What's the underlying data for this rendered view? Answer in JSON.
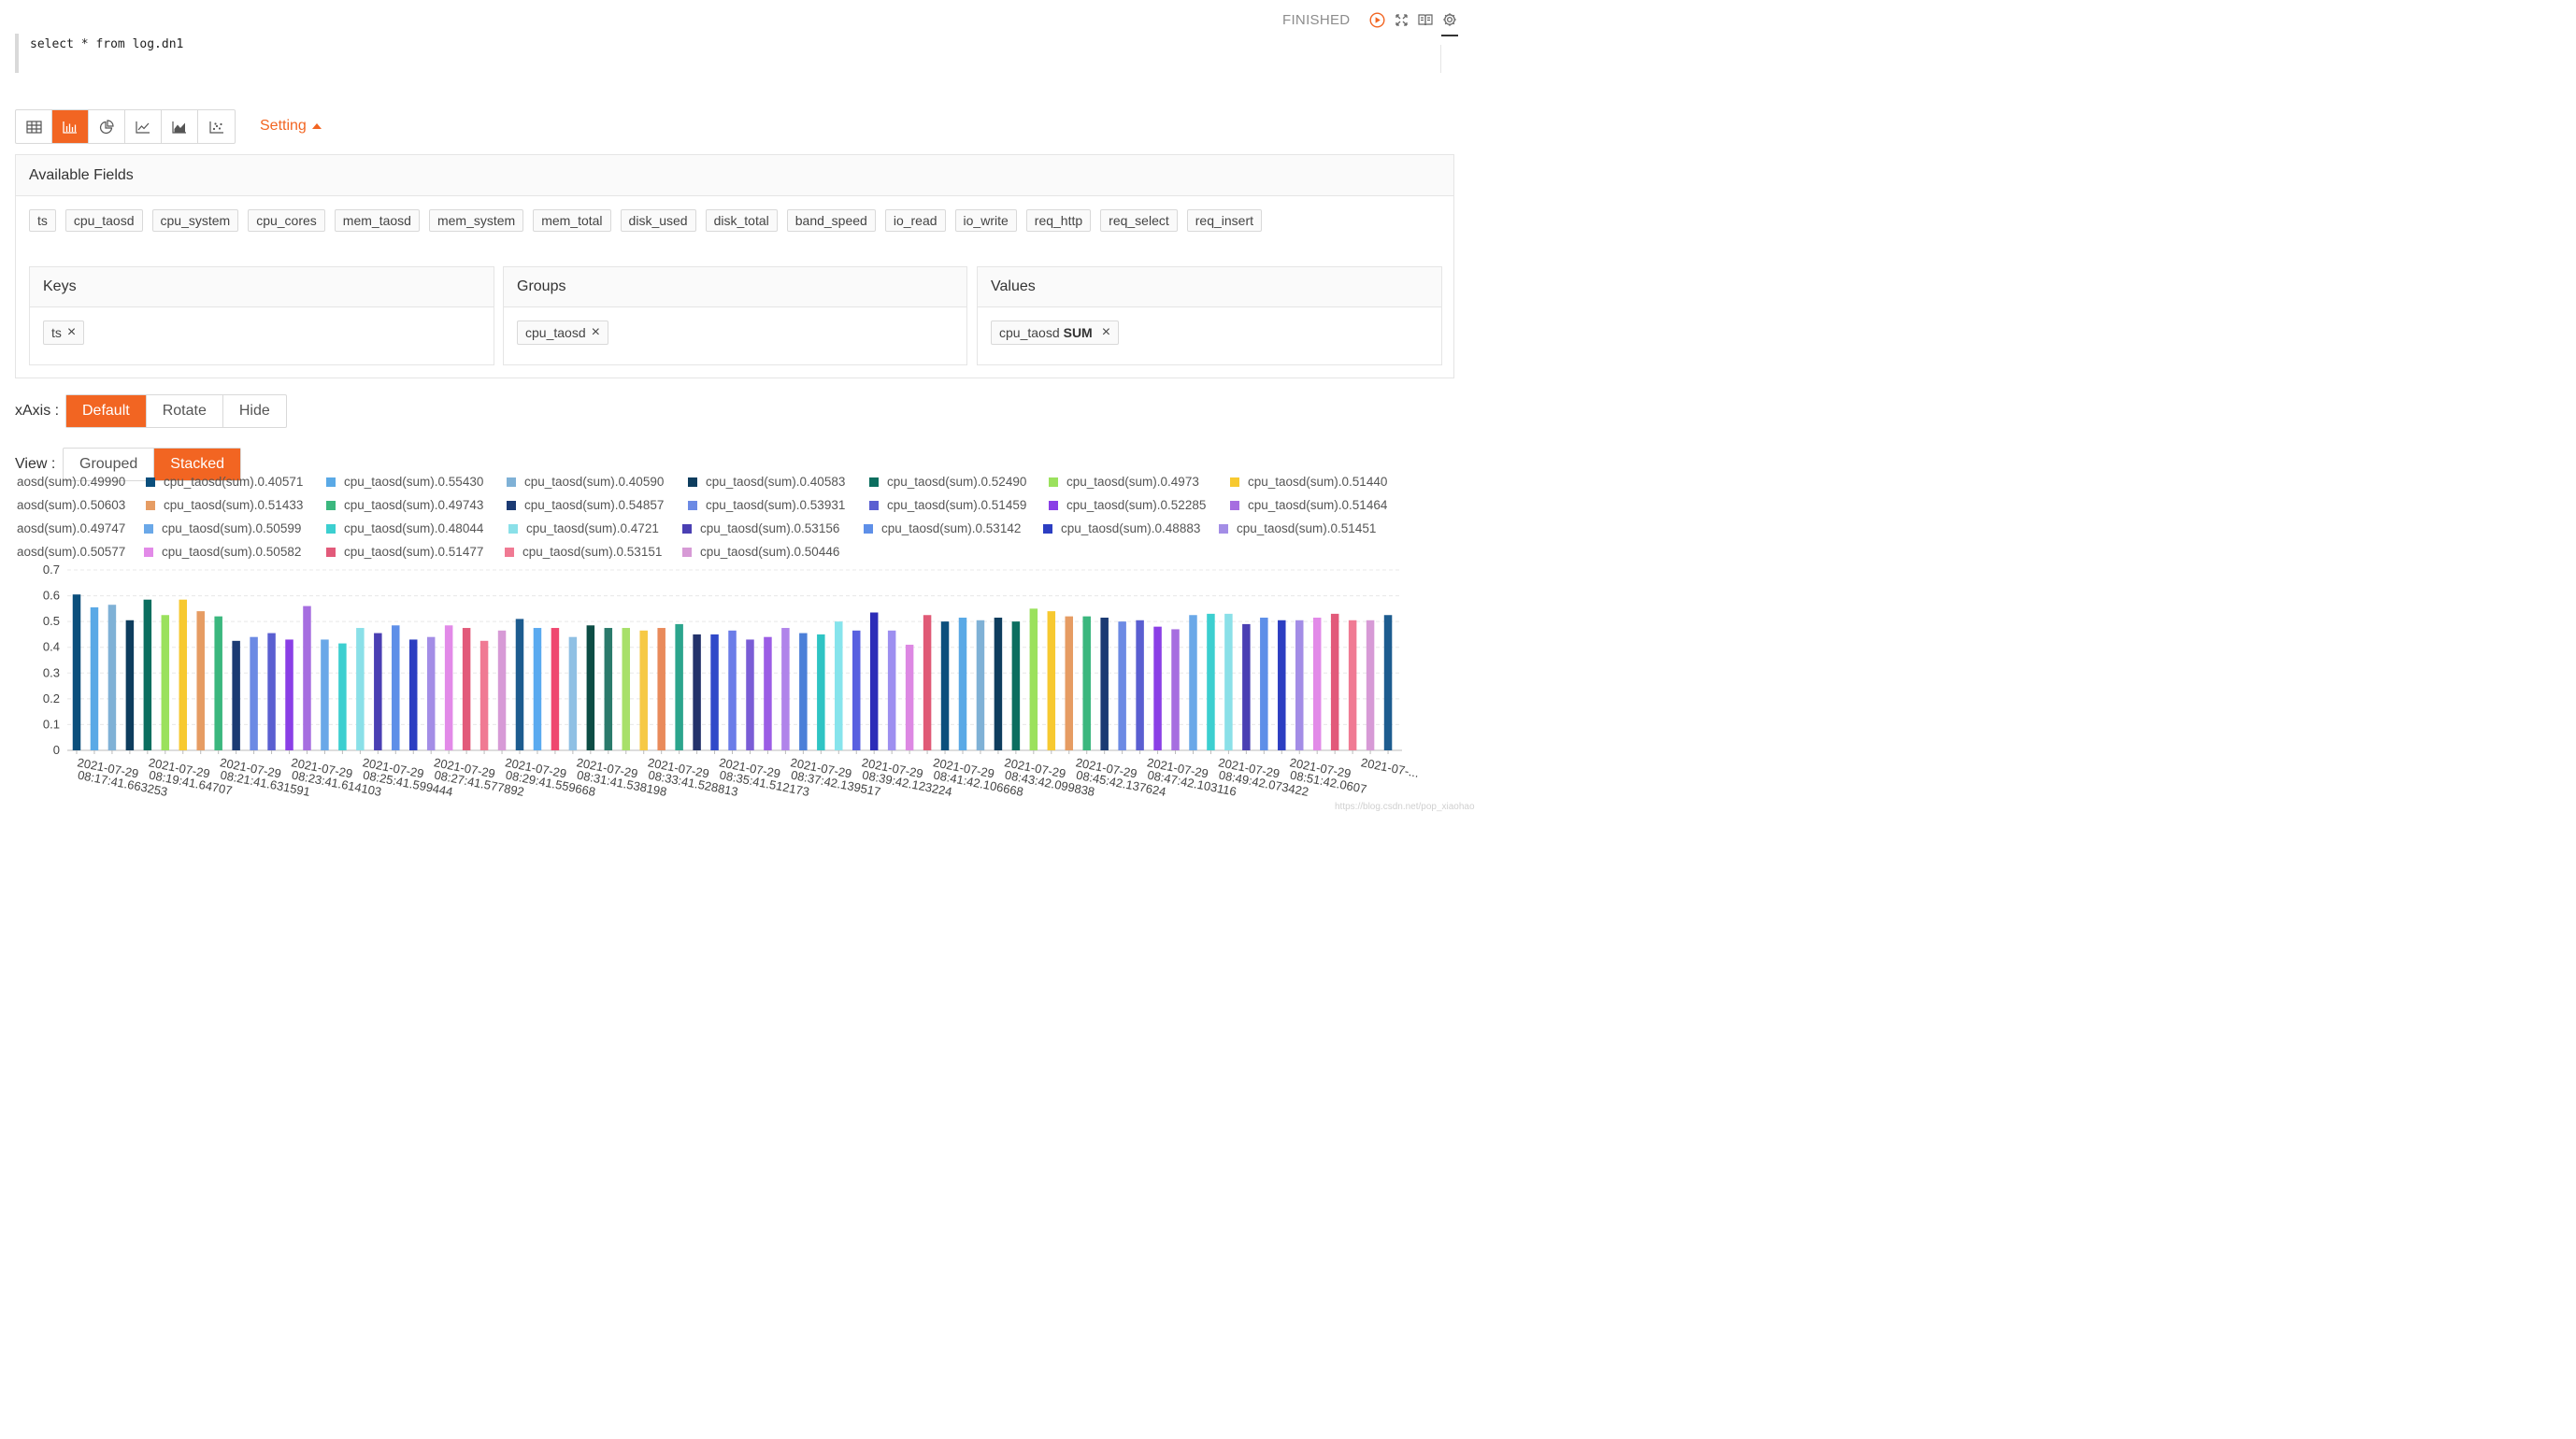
{
  "status": "FINISHED",
  "icons": {
    "run": "play-circle-icon",
    "expand": "expand-icon",
    "book": "book-icon",
    "settings": "gear-icon"
  },
  "editor": {
    "query": "select * from log.dn1"
  },
  "toolbar": {
    "buttons": [
      {
        "name": "table-icon",
        "active": false
      },
      {
        "name": "bar-chart-icon",
        "active": true
      },
      {
        "name": "pie-chart-icon",
        "active": false
      },
      {
        "name": "line-chart-icon",
        "active": false
      },
      {
        "name": "area-chart-icon",
        "active": false
      },
      {
        "name": "scatter-chart-icon",
        "active": false
      }
    ],
    "setting_label": "Setting"
  },
  "panel": {
    "title": "Available Fields",
    "fields": [
      "ts",
      "cpu_taosd",
      "cpu_system",
      "cpu_cores",
      "mem_taosd",
      "mem_system",
      "mem_total",
      "disk_used",
      "disk_total",
      "band_speed",
      "io_read",
      "io_write",
      "req_http",
      "req_select",
      "req_insert"
    ],
    "keys": {
      "title": "Keys",
      "item": "ts"
    },
    "groups": {
      "title": "Groups",
      "item": "cpu_taosd"
    },
    "values": {
      "title": "Values",
      "item": "cpu_taosd",
      "agg": "SUM"
    }
  },
  "xaxis": {
    "label": "xAxis :",
    "options": [
      "Default",
      "Rotate",
      "Hide"
    ],
    "selected": "Default"
  },
  "view": {
    "label": "View :",
    "options": [
      "Grouped",
      "Stacked"
    ],
    "selected": "Stacked"
  },
  "watermark": "https://blog.csdn.net/pop_xiaohao",
  "chart_data": {
    "type": "bar",
    "stacked": true,
    "legend": {
      "placement": "top",
      "rows": [
        [
          "aosd(sum).0.49990",
          "cpu_taosd(sum).0.40571",
          "cpu_taosd(sum).0.55430",
          "cpu_taosd(sum).0.40590",
          "cpu_taosd(sum).0.40583",
          "cpu_taosd(sum).0.52490",
          "cpu_taosd(sum).0.4973",
          "cpu_taosd(sum).0.51440"
        ],
        [
          "aosd(sum).0.50603",
          "cpu_taosd(sum).0.51433",
          "cpu_taosd(sum).0.49743",
          "cpu_taosd(sum).0.54857",
          "cpu_taosd(sum).0.53931",
          "cpu_taosd(sum).0.51459",
          "cpu_taosd(sum).0.52285",
          "cpu_taosd(sum).0.51464"
        ],
        [
          "aosd(sum).0.49747",
          "cpu_taosd(sum).0.50599",
          "cpu_taosd(sum).0.48044",
          "cpu_taosd(sum).0.4721",
          "cpu_taosd(sum).0.53156",
          "cpu_taosd(sum).0.53142",
          "cpu_taosd(sum).0.48883",
          "cpu_taosd(sum).0.51451"
        ],
        [
          "aosd(sum).0.50577",
          "cpu_taosd(sum).0.50582",
          "cpu_taosd(sum).0.51477",
          "cpu_taosd(sum).0.53151",
          "cpu_taosd(sum).0.50446"
        ]
      ]
    },
    "ylim": [
      0,
      0.7
    ],
    "yticks": [
      0,
      0.1,
      0.2,
      0.3,
      0.4,
      0.5,
      0.6,
      0.7
    ],
    "grid": true,
    "xtick_labels": [
      "2021-07-29 08:17:41.663253",
      "2021-07-29 08:19:41.64707",
      "2021-07-29 08:21:41.631591",
      "2021-07-29 08:23:41.614103",
      "2021-07-29 08:25:41.599444",
      "2021-07-29 08:27:41.577892",
      "2021-07-29 08:29:41.559668",
      "2021-07-29 08:31:41.538198",
      "2021-07-29 08:33:41.528813",
      "2021-07-29 08:35:41.512173",
      "2021-07-29 08:37:42.139517",
      "2021-07-29 08:39:42.123224",
      "2021-07-29 08:41:42.106668",
      "2021-07-29 08:43:42.099838",
      "2021-07-29 08:45:42.137624",
      "2021-07-29 08:47:42.103116",
      "2021-07-29 08:49:42.073422",
      "2021-07-29 08:51:42.0607",
      "2021-07-..."
    ],
    "values": [
      0.605,
      0.555,
      0.565,
      0.505,
      0.585,
      0.525,
      0.585,
      0.54,
      0.52,
      0.425,
      0.44,
      0.455,
      0.43,
      0.56,
      0.43,
      0.415,
      0.475,
      0.455,
      0.485,
      0.43,
      0.44,
      0.485,
      0.475,
      0.425,
      0.465,
      0.51,
      0.475,
      0.475,
      0.44,
      0.485,
      0.475,
      0.475,
      0.465,
      0.475,
      0.49,
      0.45,
      0.45,
      0.465,
      0.43,
      0.44,
      0.475,
      0.455,
      0.45,
      0.5,
      0.465,
      0.535,
      0.465,
      0.41,
      0.525,
      0.5,
      0.515,
      0.505,
      0.515,
      0.5,
      0.55,
      0.54,
      0.52,
      0.52,
      0.515,
      0.5,
      0.505,
      0.48,
      0.47,
      0.525,
      0.53,
      0.53,
      0.49,
      0.515,
      0.505,
      0.505,
      0.515,
      0.53,
      0.505,
      0.505,
      0.525
    ],
    "colors": [
      "#0b4f7c",
      "#5aa9e6",
      "#7fb1d6",
      "#0e3d5e",
      "#0b6e5f",
      "#9be15d",
      "#f7c930",
      "#e69c63",
      "#3bb77e",
      "#1b3a73",
      "#6c8ae4",
      "#5a5fd1",
      "#8a3fe6",
      "#a66ee0",
      "#6aa8e8",
      "#3ccfd0",
      "#8ae0e8",
      "#4a3fb3",
      "#5e8fe8",
      "#2c3ec2",
      "#a38de6",
      "#e28ae8",
      "#e25a7a",
      "#f07a93",
      "#d79ad6",
      "#1d5c8f",
      "#5aaaf0",
      "#ef476f",
      "#8fc0e4",
      "#0d4d45",
      "#2a7a6b",
      "#a8e06a",
      "#f6c945",
      "#e98a5b",
      "#2ca58d",
      "#23326b",
      "#3049c9",
      "#6b7ce8",
      "#7a5dd6",
      "#9b5de5",
      "#b084ea",
      "#4b7fd8",
      "#2fc4c4",
      "#86e4ec",
      "#5860e0",
      "#2c2cb8",
      "#9d8ff0",
      "#dd88e3",
      "#e05a76"
    ]
  }
}
